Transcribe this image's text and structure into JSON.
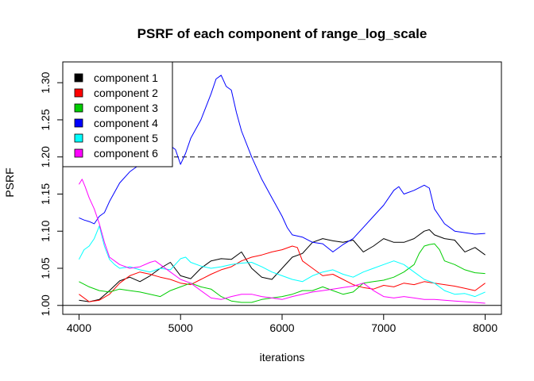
{
  "chart_data": {
    "type": "line",
    "title": "PSRF of each component of range_log_scale",
    "xlabel": "iterations",
    "ylabel": "PSRF",
    "xlim": [
      3840,
      8160
    ],
    "ylim": [
      0.988,
      1.328
    ],
    "xticks": [
      4000,
      5000,
      6000,
      7000,
      8000
    ],
    "yticks": [
      1.0,
      1.05,
      1.1,
      1.15,
      1.2,
      1.25,
      1.3
    ],
    "ytick_labels": [
      "1.00",
      "1.05",
      "1.10",
      "1.15",
      "1.20",
      "1.25",
      "1.30"
    ],
    "hlines": [
      {
        "y": 1.0,
        "style": "solid",
        "color": "#000000"
      },
      {
        "y": 1.2,
        "style": "dashed",
        "color": "#000000"
      }
    ],
    "legend_position": "top-left",
    "grid": false,
    "series": [
      {
        "name": "component 1",
        "color": "#000000",
        "x": [
          4000,
          4100,
          4200,
          4300,
          4400,
          4500,
          4600,
          4700,
          4800,
          4900,
          5000,
          5100,
          5200,
          5300,
          5400,
          5500,
          5600,
          5700,
          5800,
          5900,
          6000,
          6100,
          6200,
          6300,
          6400,
          6500,
          6600,
          6700,
          6800,
          6900,
          7000,
          7100,
          7200,
          7300,
          7400,
          7450,
          7500,
          7600,
          7700,
          7800,
          7900,
          8000
        ],
        "y": [
          1.007,
          1.005,
          1.008,
          1.02,
          1.033,
          1.038,
          1.032,
          1.04,
          1.05,
          1.058,
          1.04,
          1.036,
          1.05,
          1.06,
          1.063,
          1.062,
          1.072,
          1.05,
          1.038,
          1.035,
          1.05,
          1.065,
          1.07,
          1.085,
          1.09,
          1.087,
          1.085,
          1.088,
          1.072,
          1.08,
          1.09,
          1.085,
          1.085,
          1.09,
          1.1,
          1.102,
          1.095,
          1.09,
          1.088,
          1.072,
          1.078,
          1.068
        ]
      },
      {
        "name": "component 2",
        "color": "#ff0000",
        "x": [
          4000,
          4100,
          4200,
          4300,
          4400,
          4500,
          4600,
          4700,
          4800,
          4900,
          5000,
          5100,
          5200,
          5300,
          5400,
          5500,
          5600,
          5700,
          5800,
          5900,
          6000,
          6100,
          6150,
          6200,
          6300,
          6400,
          6500,
          6600,
          6700,
          6800,
          6900,
          7000,
          7100,
          7200,
          7300,
          7400,
          7500,
          7600,
          7700,
          7800,
          7900,
          8000
        ],
        "y": [
          1.015,
          1.005,
          1.007,
          1.015,
          1.03,
          1.04,
          1.045,
          1.042,
          1.038,
          1.035,
          1.03,
          1.028,
          1.035,
          1.042,
          1.048,
          1.052,
          1.06,
          1.065,
          1.068,
          1.072,
          1.075,
          1.08,
          1.078,
          1.06,
          1.05,
          1.04,
          1.042,
          1.035,
          1.028,
          1.024,
          1.022,
          1.027,
          1.025,
          1.03,
          1.028,
          1.032,
          1.03,
          1.028,
          1.026,
          1.023,
          1.02,
          1.03
        ]
      },
      {
        "name": "component 3",
        "color": "#00cd00",
        "x": [
          4000,
          4100,
          4200,
          4300,
          4400,
          4500,
          4600,
          4700,
          4800,
          4900,
          5000,
          5100,
          5200,
          5300,
          5400,
          5500,
          5600,
          5700,
          5800,
          5900,
          6000,
          6100,
          6200,
          6300,
          6400,
          6500,
          6600,
          6700,
          6800,
          6900,
          7000,
          7100,
          7200,
          7300,
          7350,
          7400,
          7450,
          7500,
          7550,
          7600,
          7700,
          7800,
          7900,
          8000
        ],
        "y": [
          1.032,
          1.025,
          1.02,
          1.018,
          1.022,
          1.02,
          1.018,
          1.015,
          1.012,
          1.02,
          1.025,
          1.03,
          1.025,
          1.022,
          1.012,
          1.006,
          1.004,
          1.004,
          1.008,
          1.01,
          1.012,
          1.015,
          1.02,
          1.02,
          1.025,
          1.02,
          1.015,
          1.018,
          1.03,
          1.032,
          1.034,
          1.038,
          1.045,
          1.055,
          1.07,
          1.08,
          1.082,
          1.083,
          1.075,
          1.06,
          1.055,
          1.048,
          1.044,
          1.043
        ]
      },
      {
        "name": "component 4",
        "color": "#0000ff",
        "x": [
          4000,
          4050,
          4100,
          4150,
          4200,
          4250,
          4300,
          4400,
          4500,
          4600,
          4700,
          4800,
          4900,
          4950,
          5000,
          5050,
          5100,
          5200,
          5300,
          5350,
          5400,
          5450,
          5500,
          5550,
          5600,
          5700,
          5800,
          5900,
          6000,
          6050,
          6100,
          6200,
          6300,
          6400,
          6500,
          6600,
          6700,
          6800,
          6900,
          7000,
          7100,
          7150,
          7200,
          7300,
          7400,
          7450,
          7500,
          7600,
          7700,
          7800,
          7900,
          8000
        ],
        "y": [
          1.118,
          1.115,
          1.113,
          1.11,
          1.12,
          1.125,
          1.14,
          1.165,
          1.18,
          1.19,
          1.2,
          1.21,
          1.215,
          1.21,
          1.19,
          1.205,
          1.225,
          1.25,
          1.285,
          1.305,
          1.31,
          1.295,
          1.29,
          1.26,
          1.235,
          1.2,
          1.17,
          1.145,
          1.12,
          1.105,
          1.095,
          1.092,
          1.085,
          1.083,
          1.072,
          1.082,
          1.09,
          1.105,
          1.12,
          1.135,
          1.155,
          1.16,
          1.15,
          1.155,
          1.162,
          1.158,
          1.13,
          1.11,
          1.1,
          1.098,
          1.096,
          1.097
        ]
      },
      {
        "name": "component 5",
        "color": "#00ffff",
        "x": [
          4000,
          4050,
          4100,
          4150,
          4200,
          4250,
          4300,
          4350,
          4400,
          4500,
          4600,
          4700,
          4800,
          4900,
          5000,
          5050,
          5100,
          5200,
          5300,
          5400,
          5500,
          5600,
          5700,
          5800,
          5900,
          6000,
          6100,
          6200,
          6300,
          6400,
          6500,
          6600,
          6700,
          6800,
          6900,
          7000,
          7100,
          7200,
          7300,
          7400,
          7500,
          7600,
          7700,
          7800,
          7900,
          8000
        ],
        "y": [
          1.062,
          1.075,
          1.08,
          1.09,
          1.107,
          1.08,
          1.062,
          1.055,
          1.05,
          1.052,
          1.048,
          1.045,
          1.05,
          1.048,
          1.063,
          1.065,
          1.058,
          1.053,
          1.05,
          1.052,
          1.055,
          1.057,
          1.058,
          1.052,
          1.045,
          1.04,
          1.035,
          1.032,
          1.04,
          1.045,
          1.048,
          1.042,
          1.038,
          1.045,
          1.05,
          1.055,
          1.06,
          1.055,
          1.045,
          1.035,
          1.03,
          1.02,
          1.015,
          1.016,
          1.012,
          1.018
        ]
      },
      {
        "name": "component 6",
        "color": "#ff00ff",
        "x": [
          4000,
          4030,
          4060,
          4100,
          4150,
          4200,
          4250,
          4300,
          4400,
          4500,
          4600,
          4700,
          4750,
          4800,
          4900,
          5000,
          5100,
          5200,
          5300,
          5400,
          5500,
          5600,
          5700,
          5800,
          5900,
          6000,
          6100,
          6200,
          6300,
          6400,
          6500,
          6600,
          6700,
          6800,
          6900,
          7000,
          7100,
          7200,
          7300,
          7400,
          7500,
          7600,
          7700,
          7800,
          7900,
          8000
        ],
        "y": [
          1.163,
          1.17,
          1.16,
          1.145,
          1.13,
          1.11,
          1.085,
          1.065,
          1.055,
          1.05,
          1.052,
          1.058,
          1.06,
          1.055,
          1.045,
          1.035,
          1.03,
          1.02,
          1.01,
          1.008,
          1.012,
          1.015,
          1.015,
          1.012,
          1.01,
          1.008,
          1.012,
          1.015,
          1.018,
          1.02,
          1.022,
          1.024,
          1.026,
          1.03,
          1.02,
          1.012,
          1.01,
          1.012,
          1.01,
          1.008,
          1.008,
          1.007,
          1.006,
          1.005,
          1.004,
          1.003
        ]
      }
    ]
  }
}
